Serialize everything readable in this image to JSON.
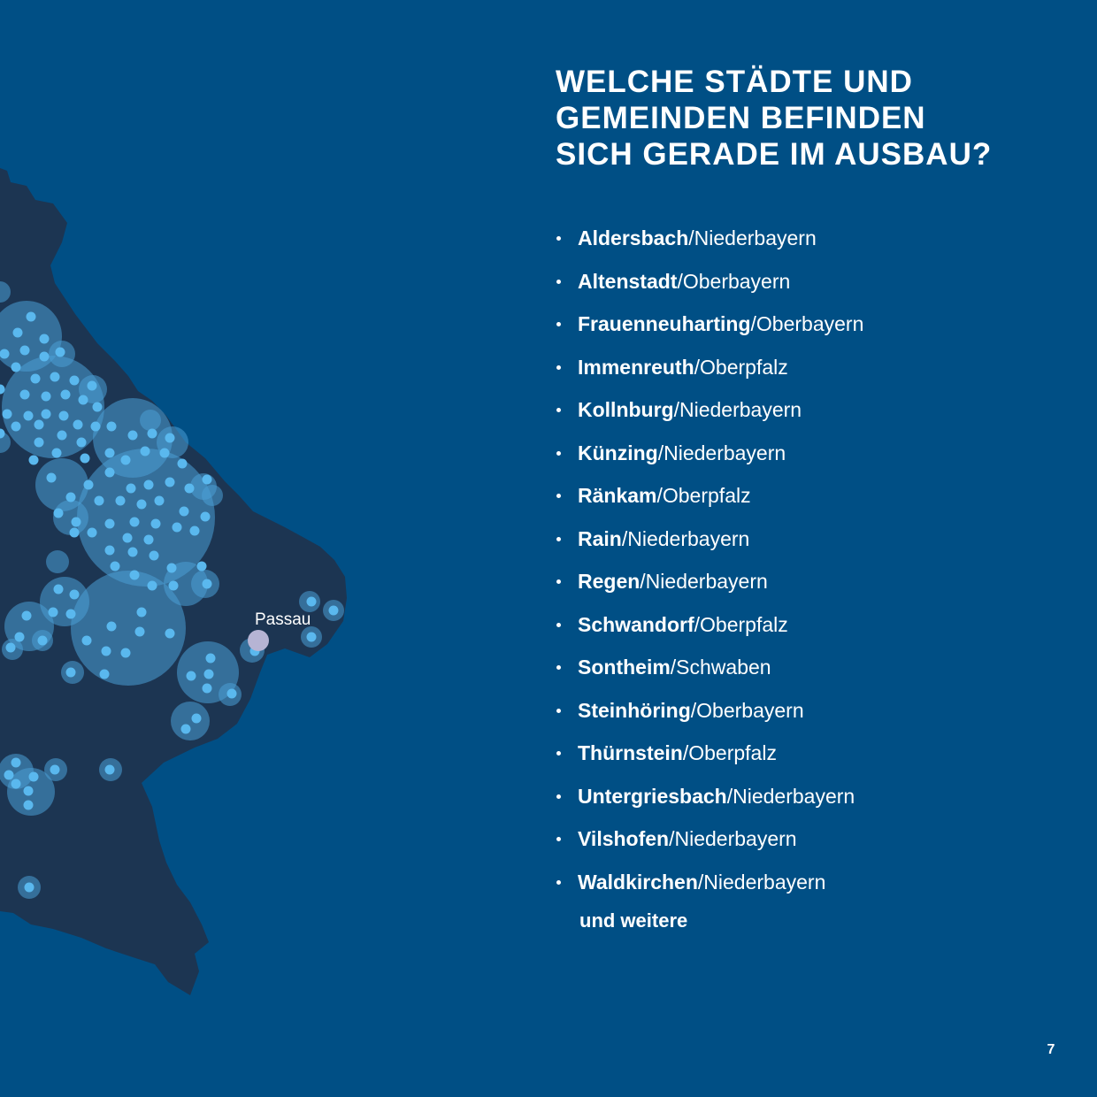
{
  "heading": {
    "lines": [
      "Welche Städte und",
      "Gemeinden befinden",
      "sich gerade im Ausbau?"
    ]
  },
  "cities": [
    {
      "name": "Aldersbach",
      "region": "/Niederbayern"
    },
    {
      "name": "Altenstadt",
      "region": "/Oberbayern"
    },
    {
      "name": "Frauenneuharting",
      "region": "/Oberbayern"
    },
    {
      "name": "Immenreuth",
      "region": "/Oberpfalz"
    },
    {
      "name": "Kollnburg",
      "region": "/Niederbayern"
    },
    {
      "name": "Künzing",
      "region": "/Niederbayern"
    },
    {
      "name": "Ränkam",
      "region": "/Oberpfalz"
    },
    {
      "name": "Rain",
      "region": "/Niederbayern"
    },
    {
      "name": "Regen",
      "region": "/Niederbayern"
    },
    {
      "name": "Schwandorf",
      "region": "/Oberpfalz"
    },
    {
      "name": "Sontheim",
      "region": "/Schwaben"
    },
    {
      "name": "Steinhöring",
      "region": "/Oberbayern"
    },
    {
      "name": "Thürnstein",
      "region": "/Oberpfalz"
    },
    {
      "name": "Untergriesbach",
      "region": "/Niederbayern"
    },
    {
      "name": "Vilshofen",
      "region": "/Niederbayern"
    },
    {
      "name": "Waldkirchen",
      "region": "/Niederbayern"
    }
  ],
  "more_text": "und weitere",
  "map": {
    "city_label": "Passau"
  },
  "page_number": "7",
  "colors": {
    "background": "#004f85",
    "region_fill": "#1c3552",
    "coverage_circle": "#4a9fd6",
    "location_dot": "#5ab8ee",
    "city_marker": "#b6b4d4",
    "text": "#ffffff"
  }
}
